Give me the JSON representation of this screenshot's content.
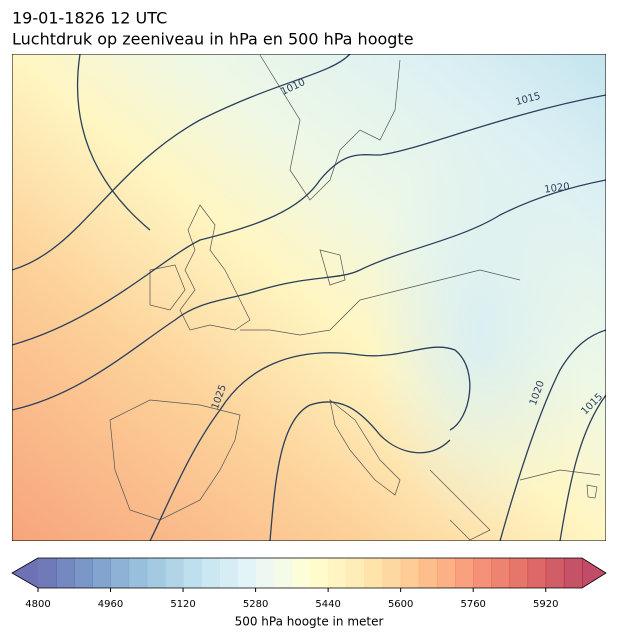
{
  "header": {
    "title": "19-01-1826 12 UTC",
    "subtitle": "Luchtdruk op zeeniveau in hPa en 500 hPa hoogte"
  },
  "map": {
    "contour_labels": [
      "1010",
      "1015",
      "1020",
      "1025",
      "1020",
      "1015"
    ]
  },
  "colorbar": {
    "label": "500 hPa hoogte in meter",
    "lim": [
      4800,
      6000
    ],
    "ticks": [
      4800,
      4960,
      5120,
      5280,
      5440,
      5600,
      5760,
      5920
    ]
  }
}
